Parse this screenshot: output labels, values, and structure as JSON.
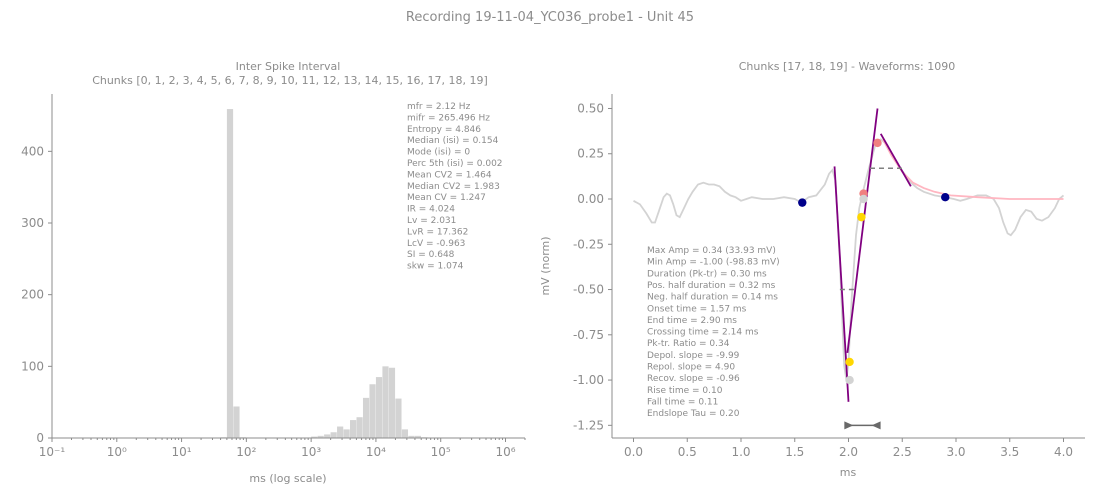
{
  "title": "Recording 19-11-04_YC036_probe1 - Unit 45",
  "chart_data": [
    {
      "type": "bar",
      "title": "Inter Spike Interval",
      "subtitle": "Chunks [0, 1, 2, 3, 4, 5, 6, 7, 8, 9, 10, 11, 12, 13, 14, 15, 16, 17, 18, 19]",
      "xlabel": "ms (log scale)",
      "ylabel": "",
      "x_scale": "log",
      "xlim": [
        0.1,
        2000000
      ],
      "ylim": [
        0,
        480
      ],
      "x_ticks": [
        {
          "value": 0.1,
          "label": "10⁻¹"
        },
        {
          "value": 1,
          "label": "10⁰"
        },
        {
          "value": 10,
          "label": "10¹"
        },
        {
          "value": 100,
          "label": "10²"
        },
        {
          "value": 1000,
          "label": "10³"
        },
        {
          "value": 10000,
          "label": "10⁴"
        },
        {
          "value": 100000,
          "label": "10⁵"
        },
        {
          "value": 1000000,
          "label": "10⁶"
        }
      ],
      "y_ticks": [
        0,
        100,
        200,
        300,
        400
      ],
      "bar_color": "#d3d3d3",
      "bins": [
        {
          "x0": 39.8,
          "x1": 50.1,
          "count": 1
        },
        {
          "x0": 50.1,
          "x1": 63.1,
          "count": 459
        },
        {
          "x0": 63.1,
          "x1": 79.4,
          "count": 44
        },
        {
          "x0": 79.4,
          "x1": 100,
          "count": 1
        },
        {
          "x0": 1000,
          "x1": 1259,
          "count": 2
        },
        {
          "x0": 1259,
          "x1": 1585,
          "count": 3
        },
        {
          "x0": 1585,
          "x1": 1995,
          "count": 5
        },
        {
          "x0": 1995,
          "x1": 2512,
          "count": 8
        },
        {
          "x0": 2512,
          "x1": 3162,
          "count": 16
        },
        {
          "x0": 3162,
          "x1": 3981,
          "count": 12
        },
        {
          "x0": 3981,
          "x1": 5012,
          "count": 25
        },
        {
          "x0": 5012,
          "x1": 6310,
          "count": 29
        },
        {
          "x0": 6310,
          "x1": 7943,
          "count": 56
        },
        {
          "x0": 7943,
          "x1": 10000,
          "count": 75
        },
        {
          "x0": 10000,
          "x1": 12589,
          "count": 85
        },
        {
          "x0": 12589,
          "x1": 15849,
          "count": 100
        },
        {
          "x0": 15849,
          "x1": 19953,
          "count": 98
        },
        {
          "x0": 19953,
          "x1": 25119,
          "count": 55
        },
        {
          "x0": 25119,
          "x1": 31623,
          "count": 12
        },
        {
          "x0": 31623,
          "x1": 39811,
          "count": 3
        },
        {
          "x0": 39811,
          "x1": 50119,
          "count": 3
        },
        {
          "x0": 50119,
          "x1": 63096,
          "count": 1
        }
      ],
      "stats": [
        "mfr = 2.12 Hz",
        "mifr = 265.496 Hz",
        "Entropy = 4.846",
        "Median (isi) = 0.154",
        "Mode (isi) = 0",
        "Perc 5th (isi) = 0.002",
        "Mean CV2 = 1.464",
        "Median CV2 = 1.983",
        "Mean CV = 1.247",
        "IR = 4.024",
        "Lv = 2.031",
        "LvR = 17.362",
        "LcV = -0.963",
        "SI = 0.648",
        "skw = 1.074"
      ]
    },
    {
      "type": "line",
      "title": "Chunks [17, 18, 19] - Waveforms: 1090",
      "xlabel": "ms",
      "ylabel": "mV (norm)",
      "xlim": [
        -0.2,
        4.2
      ],
      "ylim": [
        -1.32,
        0.58
      ],
      "x_ticks": [
        0.0,
        0.5,
        1.0,
        1.5,
        2.0,
        2.5,
        3.0,
        3.5,
        4.0
      ],
      "y_ticks": [
        0.5,
        0.25,
        0.0,
        -0.25,
        -0.5,
        -0.75,
        -1.0,
        -1.25
      ],
      "colors": {
        "waveform": "#d3d3d3",
        "slope": "#800080",
        "recovery_fit": "#ffb6c1",
        "marker_dark": "#00008b",
        "marker_red": "#f08080",
        "marker_yellow": "#ffd700",
        "marker_gray": "#d3d3d3",
        "half_width": "#808080",
        "bracket": "#696969"
      },
      "waveform": [
        [
          0.0,
          -0.01
        ],
        [
          0.06,
          -0.03
        ],
        [
          0.12,
          -0.08
        ],
        [
          0.17,
          -0.13
        ],
        [
          0.2,
          -0.13
        ],
        [
          0.24,
          -0.06
        ],
        [
          0.28,
          0.01
        ],
        [
          0.31,
          0.03
        ],
        [
          0.34,
          0.02
        ],
        [
          0.37,
          -0.03
        ],
        [
          0.4,
          -0.09
        ],
        [
          0.43,
          -0.1
        ],
        [
          0.47,
          -0.05
        ],
        [
          0.51,
          0.0
        ],
        [
          0.55,
          0.04
        ],
        [
          0.6,
          0.08
        ],
        [
          0.65,
          0.09
        ],
        [
          0.7,
          0.08
        ],
        [
          0.75,
          0.08
        ],
        [
          0.8,
          0.07
        ],
        [
          0.85,
          0.04
        ],
        [
          0.9,
          0.02
        ],
        [
          0.95,
          0.01
        ],
        [
          1.0,
          -0.01
        ],
        [
          1.05,
          0.0
        ],
        [
          1.1,
          0.01
        ],
        [
          1.2,
          0.0
        ],
        [
          1.3,
          0.0
        ],
        [
          1.4,
          0.01
        ],
        [
          1.5,
          0.0
        ],
        [
          1.56,
          -0.02
        ],
        [
          1.63,
          0.01
        ],
        [
          1.7,
          0.02
        ],
        [
          1.78,
          0.08
        ],
        [
          1.82,
          0.14
        ],
        [
          1.85,
          0.16
        ],
        [
          1.88,
          0.1
        ],
        [
          1.92,
          -0.35
        ],
        [
          1.96,
          -0.92
        ],
        [
          1.98,
          -1.0
        ],
        [
          2.0,
          -0.9
        ],
        [
          2.03,
          -0.55
        ],
        [
          2.07,
          -0.2
        ],
        [
          2.1,
          -0.05
        ],
        [
          2.13,
          0.03
        ],
        [
          2.18,
          0.15
        ],
        [
          2.25,
          0.3
        ],
        [
          2.3,
          0.33
        ],
        [
          2.36,
          0.3
        ],
        [
          2.42,
          0.23
        ],
        [
          2.48,
          0.17
        ],
        [
          2.52,
          0.14
        ],
        [
          2.58,
          0.09
        ],
        [
          2.64,
          0.06
        ],
        [
          2.7,
          0.04
        ],
        [
          2.8,
          0.02
        ],
        [
          2.9,
          0.01
        ],
        [
          2.98,
          0.0
        ],
        [
          3.04,
          -0.01
        ],
        [
          3.1,
          0.0
        ],
        [
          3.2,
          0.02
        ],
        [
          3.28,
          0.02
        ],
        [
          3.35,
          0.0
        ],
        [
          3.4,
          -0.05
        ],
        [
          3.44,
          -0.13
        ],
        [
          3.48,
          -0.19
        ],
        [
          3.51,
          -0.2
        ],
        [
          3.55,
          -0.17
        ],
        [
          3.6,
          -0.1
        ],
        [
          3.65,
          -0.06
        ],
        [
          3.7,
          -0.07
        ],
        [
          3.75,
          -0.11
        ],
        [
          3.8,
          -0.12
        ],
        [
          3.86,
          -0.1
        ],
        [
          3.92,
          -0.05
        ],
        [
          3.96,
          0.0
        ],
        [
          4.0,
          0.02
        ]
      ],
      "depol_slope_line": [
        [
          1.87,
          0.18
        ],
        [
          2.0,
          -1.12
        ]
      ],
      "repol_slope_line": [
        [
          1.99,
          -0.85
        ],
        [
          2.27,
          0.5
        ]
      ],
      "recov_slope_line": [
        [
          2.3,
          0.36
        ],
        [
          2.58,
          0.07
        ]
      ],
      "recovery_fit": [
        [
          2.32,
          0.33
        ],
        [
          2.4,
          0.24
        ],
        [
          2.5,
          0.15
        ],
        [
          2.6,
          0.09
        ],
        [
          2.7,
          0.06
        ],
        [
          2.8,
          0.04
        ],
        [
          2.95,
          0.02
        ],
        [
          3.2,
          0.01
        ],
        [
          3.5,
          0.0
        ],
        [
          4.0,
          0.0
        ]
      ],
      "half_width_lines": [
        {
          "x": [
            2.2,
            2.5
          ],
          "y": 0.17
        },
        {
          "x": [
            1.92,
            2.06
          ],
          "y": -0.5
        }
      ],
      "markers": [
        {
          "x": 1.57,
          "y": -0.02,
          "color": "marker_dark"
        },
        {
          "x": 2.9,
          "y": 0.01,
          "color": "marker_dark"
        },
        {
          "x": 2.27,
          "y": 0.31,
          "color": "marker_red"
        },
        {
          "x": 2.14,
          "y": 0.03,
          "color": "marker_red"
        },
        {
          "x": 2.12,
          "y": -0.1,
          "color": "marker_yellow"
        },
        {
          "x": 2.01,
          "y": -0.9,
          "color": "marker_yellow"
        },
        {
          "x": 2.14,
          "y": 0.0,
          "color": "marker_gray"
        },
        {
          "x": 2.01,
          "y": -1.0,
          "color": "marker_gray"
        }
      ],
      "duration_bracket": {
        "x": [
          1.98,
          2.28
        ],
        "y": -1.25
      },
      "stats": [
        "Max Amp = 0.34 (33.93 mV)",
        "Min Amp = -1.00 (-98.83 mV)",
        "Duration (Pk-tr) = 0.30 ms",
        "Pos. half duration = 0.32 ms",
        "Neg. half duration = 0.14 ms",
        "Onset time = 1.57 ms",
        "End time = 2.90 ms",
        "Crossing time = 2.14 ms",
        "Pk-tr. Ratio = 0.34",
        "Depol. slope = -9.99",
        "Repol. slope = 4.90",
        "Recov. slope = -0.96",
        "Rise time = 0.10",
        "Fall time = 0.11",
        "Endslope Tau = 0.20"
      ]
    }
  ]
}
